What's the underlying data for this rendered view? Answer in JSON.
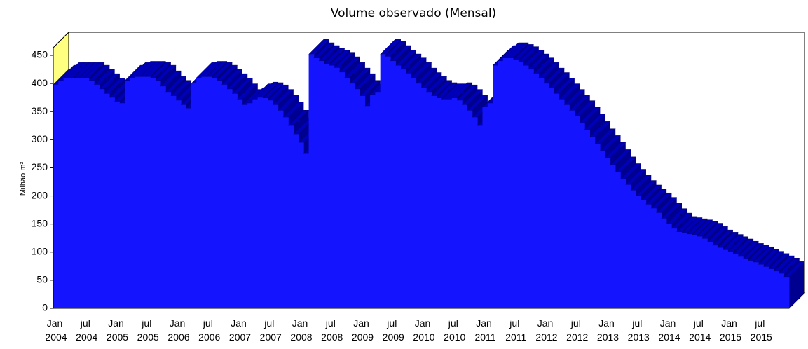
{
  "chart_data": {
    "type": "bar3d",
    "title": "Volume observado (Mensal)",
    "y_label": "Milhão m³",
    "categories": [
      "Jan 2004",
      null,
      null,
      null,
      null,
      null,
      "jul 2004",
      null,
      null,
      null,
      null,
      null,
      "Jan 2005",
      null,
      null,
      null,
      null,
      null,
      "jul 2005",
      null,
      null,
      null,
      null,
      null,
      "Jan 2006",
      null,
      null,
      null,
      null,
      null,
      "jul 2006",
      null,
      null,
      null,
      null,
      null,
      "Jan 2007",
      null,
      null,
      null,
      null,
      null,
      "jul 2007",
      null,
      null,
      null,
      null,
      null,
      "Jan 2008",
      null,
      null,
      null,
      null,
      null,
      "jul 2008",
      null,
      null,
      null,
      null,
      null,
      "Jan 2009",
      null,
      null,
      null,
      null,
      null,
      "jul 2009",
      null,
      null,
      null,
      null,
      null,
      "Jan 2010",
      null,
      null,
      null,
      null,
      null,
      "jul 2010",
      null,
      null,
      null,
      null,
      null,
      "Jan 2011",
      null,
      null,
      null,
      null,
      null,
      "jul 2011",
      null,
      null,
      null,
      null,
      null,
      "Jan 2012",
      null,
      null,
      null,
      null,
      null,
      "jul 2012",
      null,
      null,
      null,
      null,
      null,
      "Jan 2013",
      null,
      null,
      null,
      null,
      null,
      "jul 2013",
      null,
      null,
      null,
      null,
      null,
      "Jan 2014",
      null,
      null,
      null,
      null,
      null,
      "jul 2014",
      null,
      null,
      null,
      null,
      null,
      "Jan 2015",
      null,
      null,
      null,
      null,
      null,
      "jul 2015",
      null,
      null,
      null,
      null,
      null
    ],
    "values": [
      398,
      405,
      410,
      410,
      410,
      410,
      410,
      405,
      398,
      390,
      382,
      375,
      368,
      365,
      405,
      410,
      412,
      412,
      412,
      410,
      405,
      395,
      385,
      378,
      370,
      362,
      356,
      400,
      410,
      412,
      412,
      410,
      405,
      398,
      390,
      382,
      372,
      362,
      365,
      372,
      375,
      374,
      370,
      362,
      352,
      340,
      325,
      310,
      295,
      275,
      452,
      445,
      440,
      435,
      432,
      428,
      420,
      410,
      400,
      390,
      378,
      360,
      380,
      385,
      452,
      448,
      440,
      432,
      425,
      418,
      410,
      400,
      392,
      385,
      378,
      374,
      372,
      372,
      374,
      370,
      362,
      352,
      340,
      325,
      358,
      365,
      432,
      440,
      445,
      445,
      442,
      438,
      432,
      425,
      418,
      410,
      400,
      392,
      382,
      372,
      362,
      352,
      342,
      330,
      318,
      305,
      292,
      280,
      268,
      255,
      242,
      230,
      220,
      210,
      200,
      192,
      185,
      178,
      170,
      160,
      150,
      142,
      136,
      134,
      132,
      130,
      128,
      124,
      118,
      112,
      108,
      104,
      100,
      96,
      92,
      88,
      85,
      82,
      78,
      74,
      70,
      66,
      62,
      56
    ],
    "color": "#1414ff",
    "wall_color": "#ffff80",
    "ylim": [
      0,
      450
    ],
    "yticks": [
      0,
      50,
      100,
      150,
      200,
      250,
      300,
      350,
      400,
      450
    ]
  }
}
